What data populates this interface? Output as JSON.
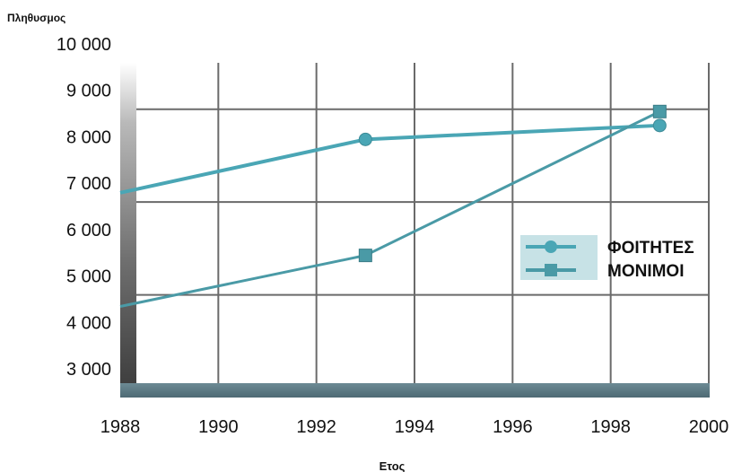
{
  "chart_data": {
    "type": "line",
    "title": "",
    "ylabel": "Πληθυσμος",
    "xlabel": "Ετος",
    "xlim": [
      1988,
      2000
    ],
    "ylim": [
      3000,
      10000
    ],
    "x_ticks": [
      1988,
      1990,
      1992,
      1994,
      1996,
      1998,
      2000
    ],
    "y_ticks": [
      3000,
      4000,
      5000,
      6000,
      7000,
      8000,
      9000,
      10000
    ],
    "x_tick_labels": [
      "1988",
      "1990",
      "1992",
      "1994",
      "1996",
      "1998",
      "2000"
    ],
    "y_tick_labels": [
      "3 000",
      "4 000",
      "5 000",
      "6 000",
      "7 000",
      "8 000",
      "9 000",
      "10 000"
    ],
    "grid": true,
    "legend_position": "right",
    "series": [
      {
        "name": "ΦΟΙΤΗΤΕΣ",
        "marker": "circle",
        "color": "#4aa6b5",
        "points": [
          [
            1988,
            7200
          ],
          [
            1993,
            8350
          ],
          [
            1999,
            8650
          ]
        ]
      },
      {
        "name": "ΜΟΝΙΜΟΙ",
        "marker": "square",
        "color": "#4a9aa6",
        "points": [
          [
            1988,
            4750
          ],
          [
            1993,
            5850
          ],
          [
            1999,
            8950
          ]
        ]
      }
    ]
  }
}
